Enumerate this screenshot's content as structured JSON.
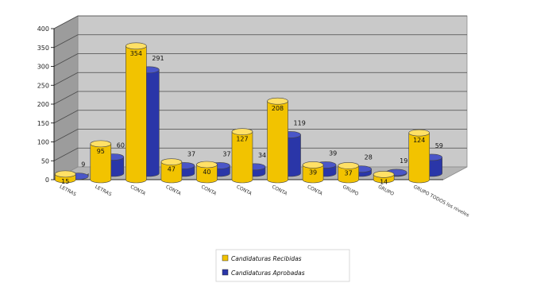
{
  "chart_data": {
    "type": "bar",
    "title": "",
    "xlabel": "",
    "ylabel": "",
    "ylim": [
      0,
      400
    ],
    "yticks": [
      0,
      50,
      100,
      150,
      200,
      250,
      300,
      350,
      400
    ],
    "grid": true,
    "legend_position": "bottom",
    "categories": [
      "LETRAS",
      "LETRAS",
      "CONTA",
      "CONTA",
      "CONTA",
      "CONTA",
      "CONTA",
      "CONTA",
      "GRUPO",
      "GRUPO",
      "GRUPO TODOS los niveles"
    ],
    "series": [
      {
        "name": "Candidaturas Recibidas",
        "color": "#f2c300",
        "values": [
          15,
          95,
          354,
          47,
          40,
          127,
          208,
          39,
          37,
          14,
          124
        ]
      },
      {
        "name": "Candidaturas Aprobadas",
        "color": "#2a36a8",
        "values": [
          9,
          60,
          291,
          37,
          37,
          34,
          119,
          39,
          28,
          19,
          59
        ]
      }
    ]
  }
}
